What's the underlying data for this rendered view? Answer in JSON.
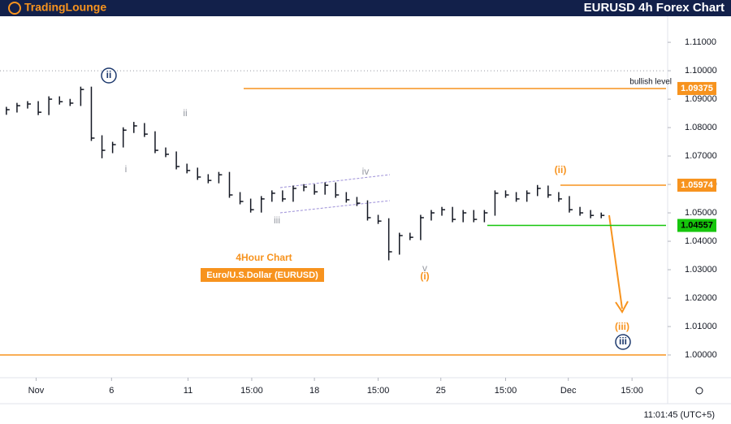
{
  "header": {
    "logo": "TradingLounge",
    "title": "EURUSD 4h Forex Chart"
  },
  "chart_data": {
    "type": "ohlc",
    "color": "#131722",
    "high": [
      1.0873,
      1.0887,
      1.0893,
      1.0893,
      1.091,
      1.091,
      1.0901,
      1.0944,
      1.0944,
      1.0773,
      1.075,
      1.0801,
      1.082,
      1.0816,
      1.0787,
      1.073,
      1.0716,
      1.0673,
      1.0659,
      1.0636,
      1.0644,
      1.0644,
      1.0573,
      1.055,
      1.0559,
      1.0579,
      1.0579,
      1.0596,
      1.0601,
      1.0601,
      1.0607,
      1.0607,
      1.0573,
      1.0556,
      1.0544,
      1.0493,
      1.0481,
      1.043,
      1.043,
      1.0493,
      1.051,
      1.0521,
      1.0521,
      1.051,
      1.051,
      1.051,
      1.0579,
      1.0579,
      1.0573,
      1.0579,
      1.0598,
      1.0596,
      1.0573,
      1.0559,
      1.0521,
      1.051,
      1.0501
    ],
    "low": [
      1.0845,
      1.0853,
      1.0867,
      1.0844,
      1.0844,
      1.0881,
      1.0876,
      1.0876,
      1.0753,
      1.0692,
      1.071,
      1.073,
      1.0781,
      1.0767,
      1.071,
      1.0696,
      1.0653,
      1.0639,
      1.0616,
      1.0604,
      1.0604,
      1.0553,
      1.053,
      1.0501,
      1.0501,
      1.0539,
      1.0539,
      1.0539,
      1.0576,
      1.0564,
      1.0564,
      1.0553,
      1.0536,
      1.0524,
      1.0473,
      1.0461,
      1.0333,
      1.0353,
      1.0404,
      1.0404,
      1.0473,
      1.049,
      1.0467,
      1.0467,
      1.0467,
      1.0467,
      1.049,
      1.0553,
      1.0539,
      1.0539,
      1.0559,
      1.0553,
      1.0539,
      1.0501,
      1.049,
      1.0481,
      1.0481
    ],
    "close": [
      1.0863,
      1.0877,
      1.0883,
      1.0854,
      1.09,
      1.0891,
      1.0886,
      1.0934,
      1.0763,
      1.072,
      1.074,
      1.0791,
      1.0806,
      1.0777,
      1.072,
      1.0706,
      1.0663,
      1.0649,
      1.0626,
      1.0614,
      1.0634,
      1.0563,
      1.054,
      1.0511,
      1.0549,
      1.0569,
      1.0549,
      1.0586,
      1.0591,
      1.0574,
      1.0597,
      1.0563,
      1.0546,
      1.0534,
      1.0483,
      1.0471,
      1.0363,
      1.042,
      1.0414,
      1.0483,
      1.05,
      1.0511,
      1.0477,
      1.05,
      1.0477,
      1.05,
      1.0569,
      1.0563,
      1.0549,
      1.0569,
      1.0586,
      1.0563,
      1.0549,
      1.0511,
      1.05,
      1.0491,
      1.0491
    ],
    "xlim": [
      -0.6,
      62.1
    ],
    "xticks": [
      {
        "value": 2.8,
        "label": "Nov"
      },
      {
        "value": 9.9,
        "label": "6"
      },
      {
        "value": 17.1,
        "label": "11"
      },
      {
        "value": 23.1,
        "label": "15:00"
      },
      {
        "value": 29.0,
        "label": "18"
      },
      {
        "value": 35.0,
        "label": "15:00"
      },
      {
        "value": 40.9,
        "label": "25"
      },
      {
        "value": 47.0,
        "label": "15:00"
      },
      {
        "value": 52.9,
        "label": "Dec"
      },
      {
        "value": 58.9,
        "label": "15:00"
      }
    ],
    "ylim": [
      0.992,
      1.1186
    ],
    "yticks": [
      {
        "value": 1.0,
        "label": "1.00000"
      },
      {
        "value": 1.01,
        "label": "1.01000"
      },
      {
        "value": 1.02,
        "label": "1.02000"
      },
      {
        "value": 1.03,
        "label": "1.03000"
      },
      {
        "value": 1.04,
        "label": "1.04000"
      },
      {
        "value": 1.05,
        "label": "1.05000"
      },
      {
        "value": 1.06,
        "label": "1.06000"
      },
      {
        "value": 1.07,
        "label": "1.07000"
      },
      {
        "value": 1.08,
        "label": "1.08000"
      },
      {
        "value": 1.09,
        "label": "1.09000"
      },
      {
        "value": 1.1,
        "label": "1.10000"
      },
      {
        "value": 1.11,
        "label": "1.11000"
      }
    ],
    "levels": [
      {
        "value": 1.09375,
        "color": "#f7931e",
        "label": "bullish level"
      },
      {
        "value": 1.05974,
        "color": "#f7931e"
      },
      {
        "value": 1.04557,
        "color": "#16c60c"
      },
      {
        "value": 1.0,
        "color": "#f7931e"
      }
    ],
    "annotations": [
      {
        "text": "ii",
        "color": "#1e3a6e",
        "circled": true
      },
      {
        "text": "ii",
        "color": "#9598a1"
      },
      {
        "text": "i",
        "color": "#9598a1"
      },
      {
        "text": "iii",
        "color": "#9598a1"
      },
      {
        "text": "iv",
        "color": "#9598a1"
      },
      {
        "text": "v",
        "color": "#9598a1"
      },
      {
        "text": "(i)",
        "color": "#f7931e"
      },
      {
        "text": "(ii)",
        "color": "#f7931e"
      },
      {
        "text": "(iii)",
        "color": "#f7931e"
      },
      {
        "text": "iii",
        "color": "#1e3a6e",
        "circled": true
      }
    ],
    "chart_label": "4Hour Chart",
    "instrument": "Euro/U.S.Dollar (EURUSD)"
  },
  "footer": {
    "clock": "11:01:45 (UTC+5)"
  }
}
